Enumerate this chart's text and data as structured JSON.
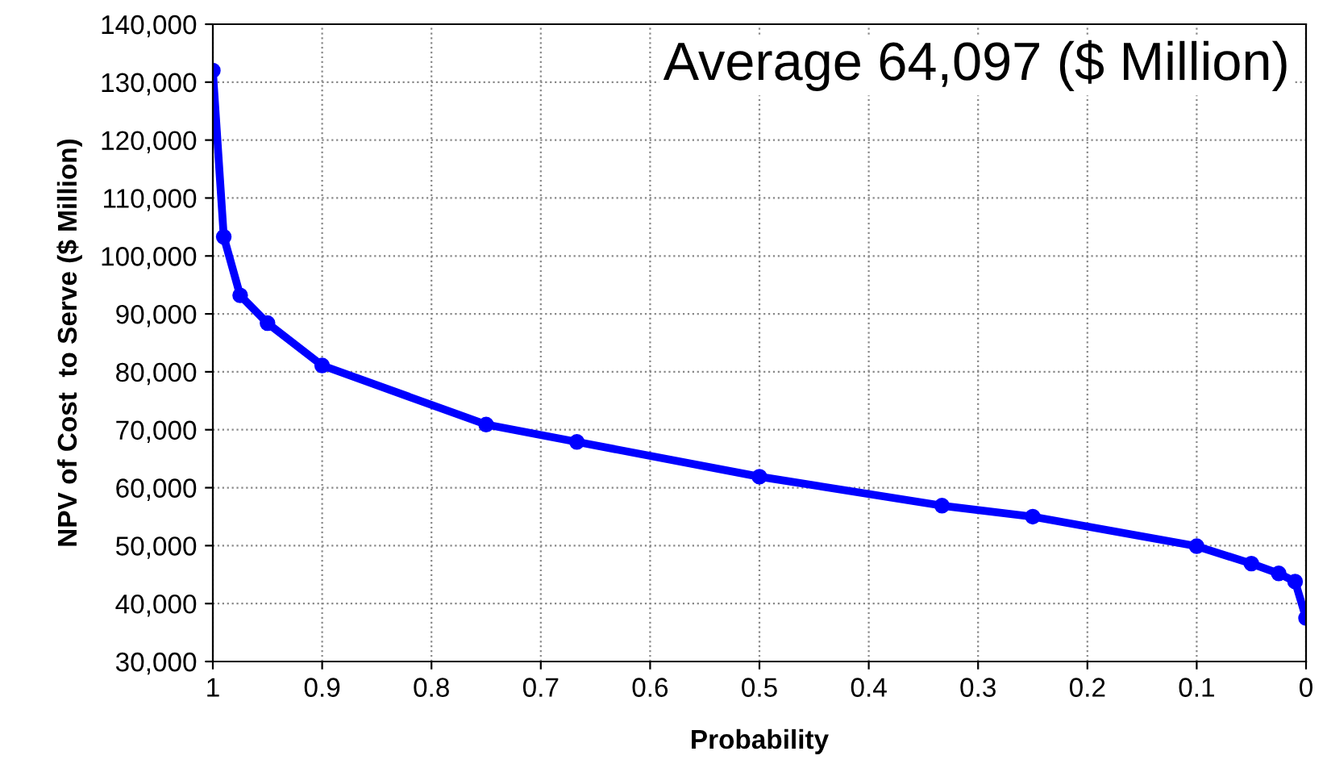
{
  "chart_data": {
    "type": "line",
    "xlabel": "Probability",
    "ylabel": "NPV of Cost  to Serve ($ Million)",
    "annotations": [
      "Average 64,097 ($ Million)"
    ],
    "x": [
      1,
      0.99,
      0.975,
      0.95,
      0.9,
      0.75,
      0.667,
      0.5,
      0.333,
      0.25,
      0.1,
      0.05,
      0.025,
      0.01,
      0
    ],
    "series": [
      {
        "color": "#0000ff",
        "values": [
          132000,
          103300,
          93200,
          88400,
          81100,
          70900,
          67900,
          61900,
          56900,
          55000,
          49900,
          46900,
          45200,
          43800,
          37500
        ]
      }
    ],
    "xlim": [
      1,
      0
    ],
    "xticks": [
      1,
      0.9,
      0.8,
      0.7,
      0.6,
      0.5,
      0.4,
      0.3,
      0.2,
      0.1,
      0
    ],
    "ylim": [
      30000,
      140000
    ],
    "yticks": [
      {
        "value": 30000,
        "label": "30,000"
      },
      {
        "value": 40000,
        "label": "40,000"
      },
      {
        "value": 50000,
        "label": "50,000"
      },
      {
        "value": 60000,
        "label": "60,000"
      },
      {
        "value": 70000,
        "label": "70,000"
      },
      {
        "value": 80000,
        "label": "80,000"
      },
      {
        "value": 90000,
        "label": "90,000"
      },
      {
        "value": 100000,
        "label": "100,000"
      },
      {
        "value": 110000,
        "label": "110,000"
      },
      {
        "value": 120000,
        "label": "120,000"
      },
      {
        "value": 130000,
        "label": "130,000"
      },
      {
        "value": 140000,
        "label": "140,000"
      }
    ],
    "grid": true,
    "marker": "circle",
    "line_style": "solid"
  }
}
